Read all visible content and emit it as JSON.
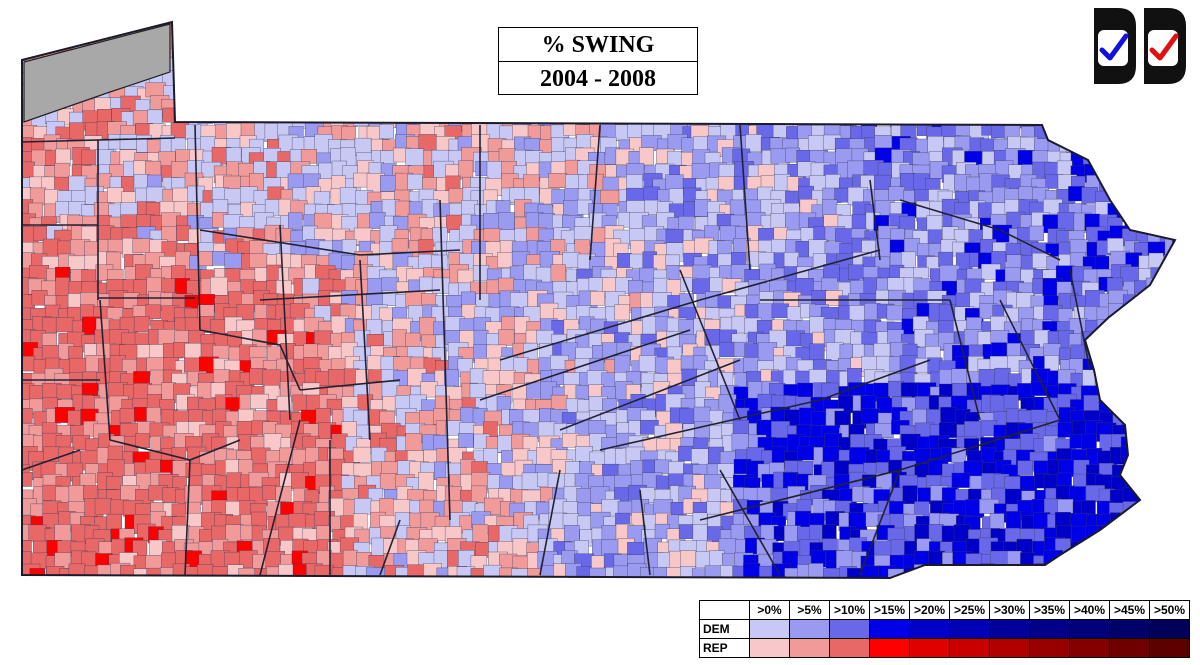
{
  "title": {
    "line1": "% SWING",
    "line2": "2004 - 2008"
  },
  "logos": [
    {
      "name": "dem-check-logo",
      "icon": "check-icon",
      "color": "#1010e0"
    },
    {
      "name": "rep-check-logo",
      "icon": "check-icon",
      "color": "#e01010"
    }
  ],
  "legend": {
    "thresholds": [
      ">0%",
      ">5%",
      ">10%",
      ">15%",
      ">20%",
      ">25%",
      ">30%",
      ">35%",
      ">40%",
      ">45%",
      ">50%"
    ],
    "rows": [
      {
        "label": "DEM",
        "colors": [
          "#c8c8f5",
          "#9a9af0",
          "#6868e8",
          "#0000e6",
          "#0000c8",
          "#0000b4",
          "#00009a",
          "#000088",
          "#000078",
          "#00006a",
          "#00005a"
        ]
      },
      {
        "label": "REP",
        "colors": [
          "#f8c8c8",
          "#f09a9a",
          "#e86868",
          "#ff0000",
          "#e00000",
          "#c80000",
          "#b00000",
          "#980000",
          "#840000",
          "#700000",
          "#5c0000"
        ]
      }
    ]
  },
  "map": {
    "region": "Pennsylvania",
    "no_data_color": "#a8a8a8",
    "border_color": "#2a2a3a"
  }
}
